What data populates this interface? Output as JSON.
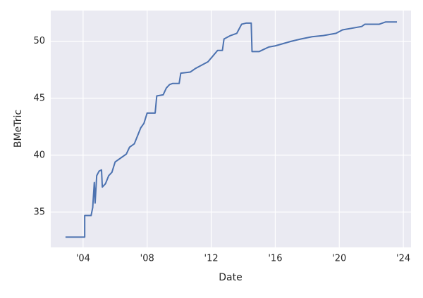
{
  "chart_data": {
    "type": "line",
    "xlabel": "Date",
    "ylabel": "BMeTric",
    "x": [
      2002.9,
      2004.1,
      2004.1,
      2004.5,
      2004.6,
      2004.7,
      2004.75,
      2004.85,
      2005.0,
      2005.15,
      2005.2,
      2005.4,
      2005.6,
      2005.8,
      2006.0,
      2006.4,
      2006.7,
      2006.9,
      2007.2,
      2007.4,
      2007.6,
      2007.8,
      2008.0,
      2008.5,
      2008.6,
      2009.0,
      2009.2,
      2009.4,
      2009.6,
      2010.0,
      2010.1,
      2010.7,
      2011.0,
      2011.4,
      2011.8,
      2012.1,
      2012.4,
      2012.7,
      2012.8,
      2013.2,
      2013.6,
      2013.9,
      2014.2,
      2014.5,
      2014.55,
      2015.0,
      2015.3,
      2015.6,
      2016.0,
      2016.5,
      2017.0,
      2017.6,
      2018.3,
      2019.0,
      2019.8,
      2020.2,
      2021.0,
      2021.4,
      2021.6,
      2022.5,
      2022.9,
      2023.6
    ],
    "series": [
      {
        "color": "#4c72b0",
        "values": [
          32.8,
          32.8,
          34.7,
          34.7,
          35.4,
          37.6,
          35.8,
          38.2,
          38.6,
          38.7,
          37.2,
          37.5,
          38.2,
          38.5,
          39.4,
          39.8,
          40.1,
          40.7,
          41.0,
          41.7,
          42.4,
          42.8,
          43.7,
          43.7,
          45.2,
          45.3,
          45.9,
          46.2,
          46.3,
          46.3,
          47.2,
          47.3,
          47.6,
          47.9,
          48.2,
          48.7,
          49.2,
          49.2,
          50.2,
          50.5,
          50.7,
          51.5,
          51.6,
          51.6,
          49.1,
          49.1,
          49.3,
          49.5,
          49.6,
          49.8,
          50.0,
          50.2,
          50.4,
          50.5,
          50.7,
          51.0,
          51.2,
          51.3,
          51.5,
          51.5,
          51.7,
          51.7
        ]
      }
    ],
    "xlim": [
      2001.98,
      2024.48
    ],
    "ylim": [
      31.9,
      52.7
    ],
    "xticks": [
      {
        "value": 2004,
        "label": "'04"
      },
      {
        "value": 2008,
        "label": "'08"
      },
      {
        "value": 2012,
        "label": "'12"
      },
      {
        "value": 2016,
        "label": "'16"
      },
      {
        "value": 2020,
        "label": "'20"
      },
      {
        "value": 2024,
        "label": "'24"
      }
    ],
    "yticks": [
      35,
      40,
      45,
      50
    ],
    "grid": true
  }
}
